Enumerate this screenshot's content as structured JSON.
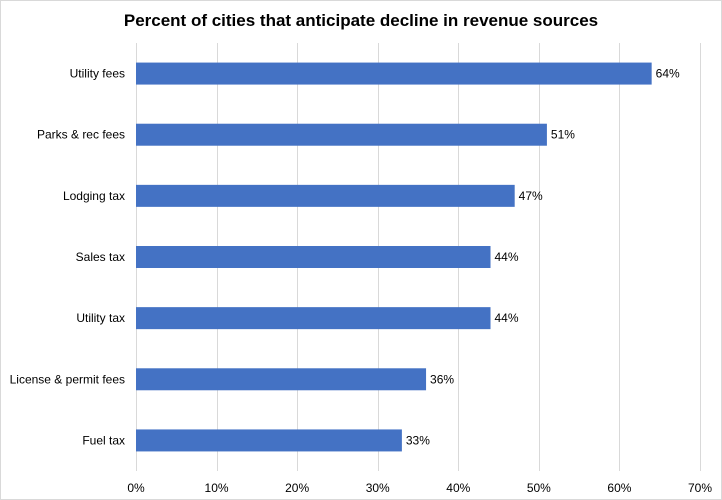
{
  "chart_data": {
    "type": "bar",
    "orientation": "horizontal",
    "title": "Percent of cities that anticipate decline in revenue sources",
    "categories": [
      "Utility fees",
      "Parks & rec fees",
      "Lodging tax",
      "Sales tax",
      "Utility tax",
      "License & permit fees",
      "Fuel tax"
    ],
    "values": [
      64,
      51,
      47,
      44,
      44,
      36,
      33
    ],
    "data_labels": [
      "64%",
      "51%",
      "47%",
      "44%",
      "44%",
      "36%",
      "33%"
    ],
    "xlim": [
      0,
      70
    ],
    "xticks": [
      0,
      10,
      20,
      30,
      40,
      50,
      60,
      70
    ],
    "xtick_labels": [
      "0%",
      "10%",
      "20%",
      "30%",
      "40%",
      "50%",
      "60%",
      "70%"
    ],
    "xlabel": "",
    "ylabel": "",
    "grid": "vertical",
    "legend": "none",
    "bar_color": "#4472c4"
  }
}
